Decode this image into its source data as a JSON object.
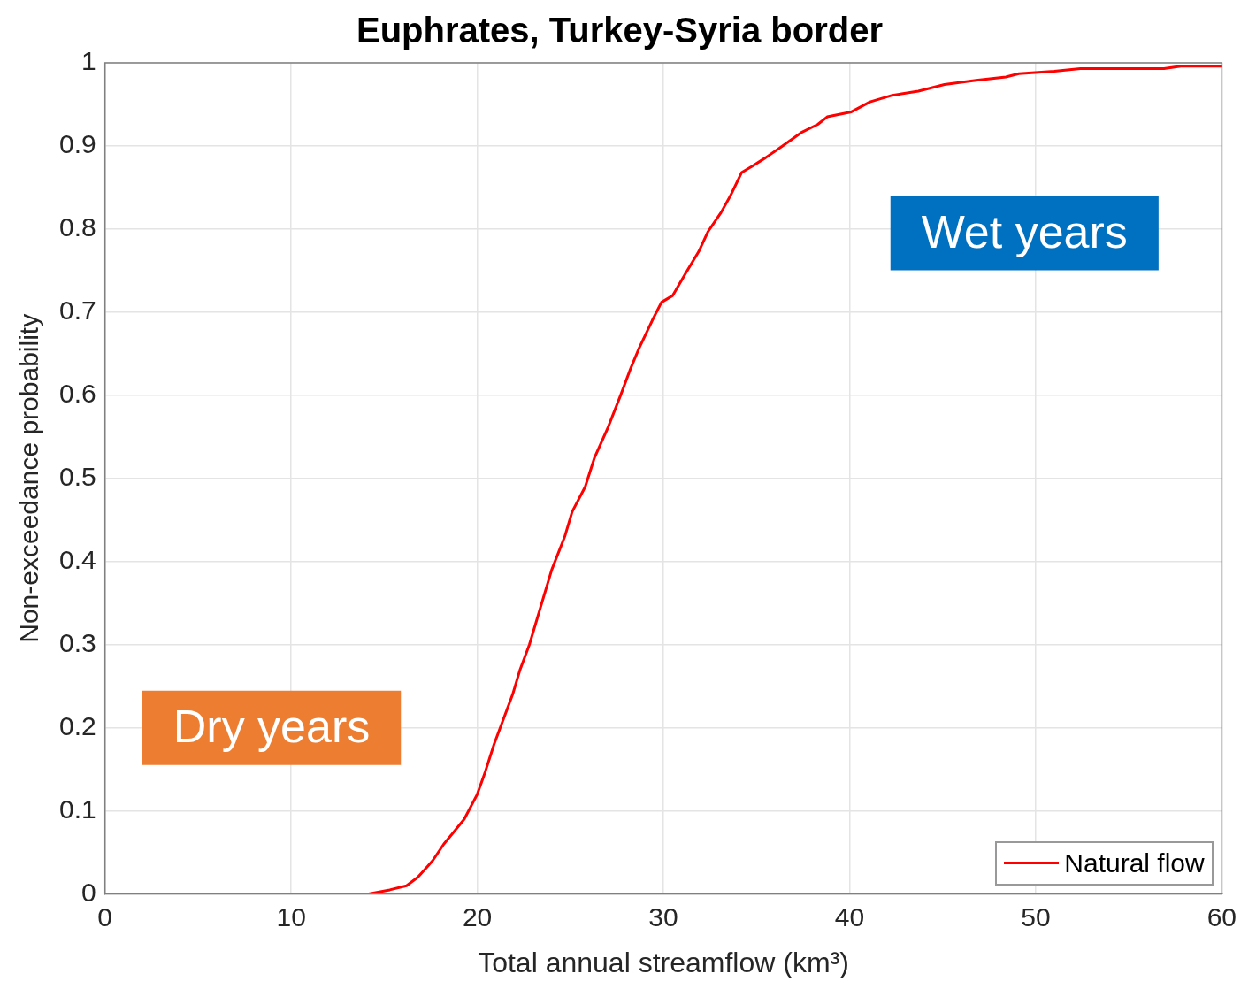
{
  "chart_data": {
    "type": "line",
    "title": "Euphrates, Turkey-Syria border",
    "xlabel": "Total annual streamflow (km³)",
    "ylabel": "Non-exceedance probability",
    "xlim": [
      0,
      60
    ],
    "xticks": [
      0,
      10,
      20,
      30,
      40,
      50,
      60
    ],
    "ylim": [
      0,
      1
    ],
    "yticks": [
      0,
      0.1,
      0.2,
      0.3,
      0.4,
      0.5,
      0.6,
      0.7,
      0.8,
      0.9,
      1
    ],
    "grid": true,
    "legend": "bottom right",
    "marker": "none",
    "line_style": "solid",
    "annotations": [
      "Dry years",
      "Wet years"
    ],
    "series": [
      {
        "name": "Natural flow",
        "color": "#ff0000",
        "x": [
          14.1,
          15.3,
          16.2,
          16.8,
          17.2,
          17.6,
          18.2,
          19.3,
          20.0,
          20.4,
          20.9,
          21.4,
          21.9,
          22.3,
          22.8,
          23.4,
          24.0,
          24.7,
          25.1,
          25.8,
          26.3,
          27.0,
          27.7,
          28.2,
          28.7,
          29.4,
          29.9,
          30.5,
          31.2,
          31.9,
          32.4,
          33.1,
          33.6,
          34.2,
          34.8,
          35.5,
          36.4,
          37.4,
          38.3,
          38.8,
          40.1,
          41.1,
          42.3,
          43.7,
          45.1,
          46.8,
          48.4,
          49.1,
          51.0,
          52.4,
          56.9,
          57.8,
          60
        ],
        "values": [
          0.0,
          0.005,
          0.01,
          0.02,
          0.03,
          0.04,
          0.06,
          0.09,
          0.12,
          0.145,
          0.18,
          0.21,
          0.24,
          0.27,
          0.3,
          0.345,
          0.39,
          0.43,
          0.46,
          0.49,
          0.525,
          0.56,
          0.6,
          0.63,
          0.657,
          0.69,
          0.712,
          0.72,
          0.747,
          0.773,
          0.797,
          0.82,
          0.84,
          0.868,
          0.876,
          0.886,
          0.9,
          0.916,
          0.926,
          0.935,
          0.941,
          0.953,
          0.961,
          0.966,
          0.974,
          0.979,
          0.983,
          0.987,
          0.99,
          0.993,
          0.993,
          0.996,
          0.996
        ]
      }
    ]
  }
}
